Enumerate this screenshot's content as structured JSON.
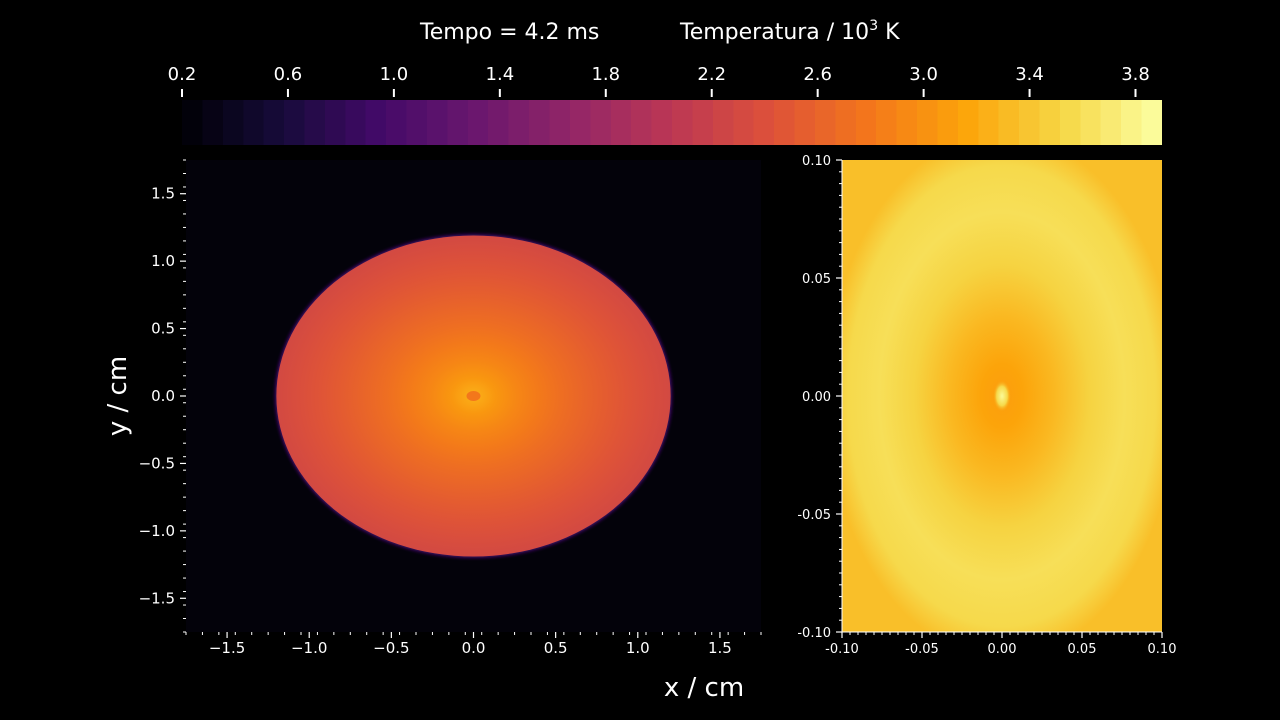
{
  "header": {
    "time_label": "Tempo = 4.2 ms",
    "temperature_label_prefix": "Temperatura / 10",
    "temperature_label_exp": "3",
    "temperature_label_unit": " K"
  },
  "chart_data": [
    {
      "type": "colorbar",
      "colormap": "inferno",
      "range": [
        0.2,
        3.9
      ],
      "ticks": [
        0.2,
        0.6,
        1.0,
        1.4,
        1.8,
        2.2,
        2.6,
        3.0,
        3.4,
        3.8
      ],
      "tick_labels": [
        "0.2",
        "0.6",
        "1.0",
        "1.4",
        "1.8",
        "2.2",
        "2.6",
        "3.0",
        "3.4",
        "3.8"
      ]
    },
    {
      "type": "heatmap",
      "xlabel": "x / cm",
      "ylabel": "y / cm",
      "xlim": [
        -1.75,
        1.75
      ],
      "ylim": [
        -1.75,
        1.75
      ],
      "xticks": [
        -1.5,
        -1.0,
        -0.5,
        0.0,
        0.5,
        1.0,
        1.5
      ],
      "xtick_labels": [
        "−1.5",
        "−1.0",
        "−0.5",
        "0.0",
        "0.5",
        "1.0",
        "1.5"
      ],
      "yticks": [
        -1.5,
        -1.0,
        -0.5,
        0.0,
        0.5,
        1.0,
        1.5
      ],
      "ytick_labels": [
        "−1.5",
        "−1.0",
        "−0.5",
        "0.0",
        "0.5",
        "1.0",
        "1.5"
      ],
      "background_value": 0.2,
      "blob": {
        "center": [
          0.0,
          0.0
        ],
        "semi_axis_x": 1.2,
        "semi_axis_y": 1.19,
        "edge_value": 2.3,
        "inner_value": 3.25,
        "core_value": 2.8
      }
    },
    {
      "type": "heatmap",
      "xlim": [
        -0.1,
        0.1
      ],
      "ylim": [
        -0.1,
        0.1
      ],
      "xticks": [
        -0.1,
        -0.05,
        0.0,
        0.05,
        0.1
      ],
      "xtick_labels": [
        "-0.10",
        "-0.05",
        "0.00",
        "0.05",
        "0.10"
      ],
      "yticks": [
        -0.1,
        -0.05,
        0.0,
        0.05,
        0.1
      ],
      "ytick_labels": [
        "-0.10",
        "-0.05",
        "0.00",
        "0.05",
        "0.10"
      ],
      "outer_value": 3.35,
      "ring_value": 3.6,
      "core_value": 3.1,
      "hotspot_value": 3.85
    }
  ]
}
